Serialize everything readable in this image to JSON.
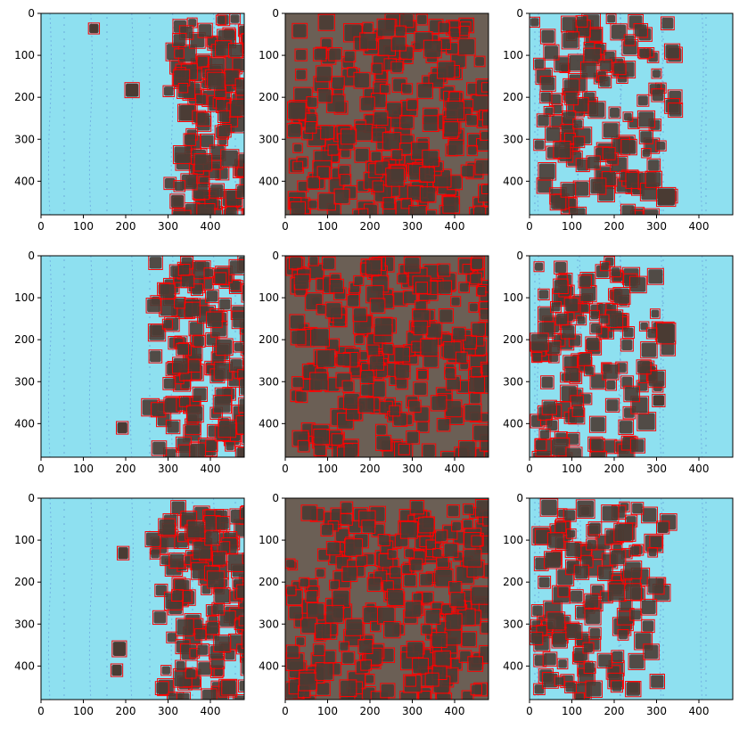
{
  "figure": {
    "rows": 3,
    "cols": 3,
    "frame_color": "#000000",
    "bbox_color": "#ff0000",
    "light_background_color": "#8ee0f0",
    "dense_background_color": "#6b5f55",
    "particle_color": "#4a3b33"
  },
  "panels": [
    {
      "id": "r1c1",
      "x_ticks": [
        "0",
        "100",
        "200",
        "300",
        "400"
      ],
      "y_ticks": [
        "0",
        "100",
        "200",
        "300",
        "400"
      ],
      "coverage": "right-edge",
      "particle_front_x": 290,
      "stray_boxes": [
        [
          112,
          23,
          26,
          26
        ],
        [
          198,
          165,
          34,
          36
        ]
      ]
    },
    {
      "id": "r1c2",
      "x_ticks": [
        "0",
        "100",
        "200",
        "300",
        "400"
      ],
      "y_ticks": [
        "0",
        "100",
        "200",
        "300",
        "400"
      ],
      "coverage": "dense",
      "particle_front_x": 0,
      "stray_boxes": []
    },
    {
      "id": "r1c3",
      "x_ticks": [
        "0",
        "100",
        "200",
        "300",
        "400"
      ],
      "y_ticks": [
        "0",
        "100",
        "200",
        "300",
        "400"
      ],
      "coverage": "left-edge",
      "particle_front_x": 300,
      "stray_boxes": [
        [
          300,
          415,
          45,
          45
        ]
      ]
    },
    {
      "id": "r2c1",
      "x_ticks": [
        "0",
        "100",
        "200",
        "300",
        "400"
      ],
      "y_ticks": [
        "0",
        "100",
        "200",
        "300",
        "400"
      ],
      "coverage": "right-edge",
      "particle_front_x": 260,
      "stray_boxes": [
        [
          178,
          395,
          28,
          30
        ]
      ]
    },
    {
      "id": "r2c2",
      "x_ticks": [
        "0",
        "100",
        "200",
        "300",
        "400"
      ],
      "y_ticks": [
        "0",
        "100",
        "200",
        "300",
        "400"
      ],
      "coverage": "dense",
      "particle_front_x": 0,
      "stray_boxes": []
    },
    {
      "id": "r2c3",
      "x_ticks": [
        "0",
        "100",
        "200",
        "300",
        "400"
      ],
      "y_ticks": [
        "0",
        "100",
        "200",
        "300",
        "400"
      ],
      "coverage": "left-edge",
      "particle_front_x": 300,
      "stray_boxes": [
        [
          300,
          160,
          45,
          50
        ],
        [
          290,
          330,
          30,
          30
        ]
      ]
    },
    {
      "id": "r3c1",
      "x_ticks": [
        "0",
        "100",
        "200",
        "300",
        "400"
      ],
      "y_ticks": [
        "0",
        "100",
        "200",
        "300",
        "400"
      ],
      "coverage": "right-edge",
      "particle_front_x": 260,
      "stray_boxes": [
        [
          180,
          115,
          28,
          32
        ],
        [
          168,
          340,
          34,
          38
        ],
        [
          165,
          395,
          28,
          30
        ]
      ]
    },
    {
      "id": "r3c2",
      "x_ticks": [
        "0",
        "100",
        "200",
        "300",
        "400"
      ],
      "y_ticks": [
        "0",
        "100",
        "200",
        "300",
        "400"
      ],
      "coverage": "dense",
      "particle_front_x": 0,
      "stray_boxes": []
    },
    {
      "id": "r3c3",
      "x_ticks": [
        "0",
        "100",
        "200",
        "300",
        "400"
      ],
      "y_ticks": [
        "0",
        "100",
        "200",
        "300",
        "400"
      ],
      "coverage": "left-edge",
      "particle_front_x": 290,
      "stray_boxes": [
        [
          300,
          55,
          30,
          30
        ]
      ]
    }
  ]
}
